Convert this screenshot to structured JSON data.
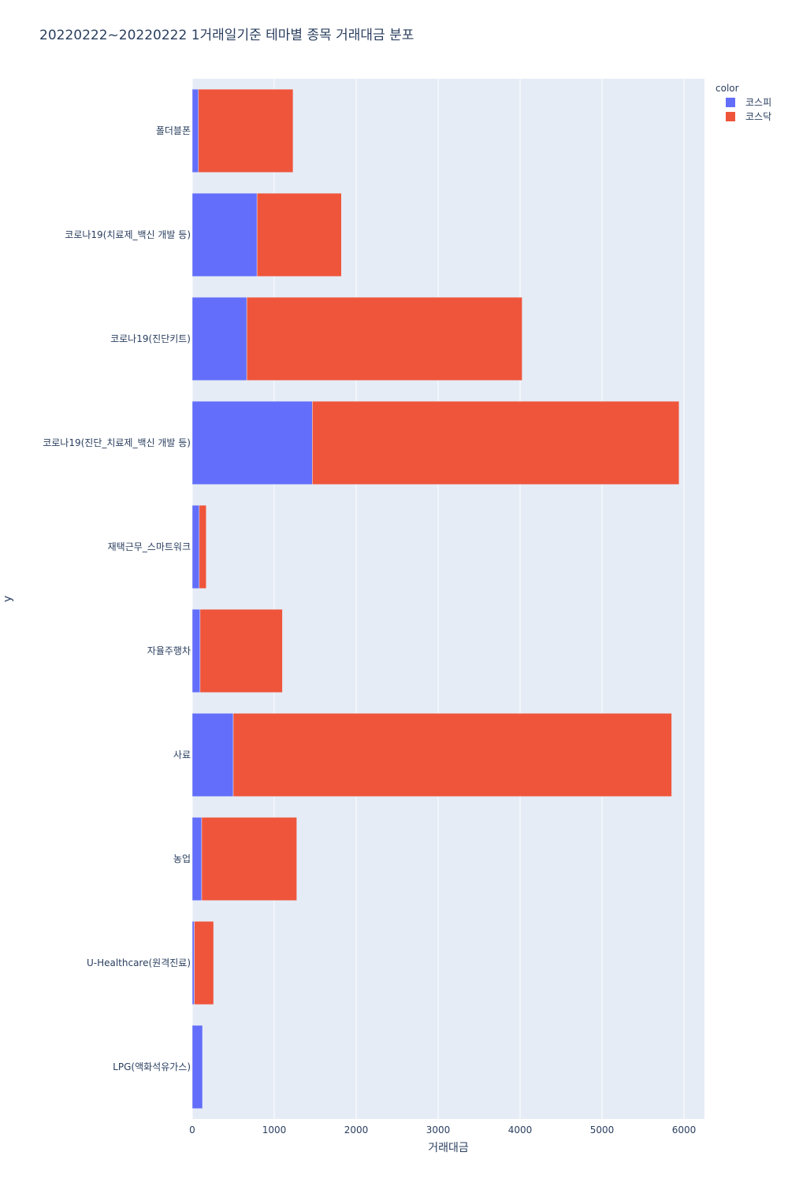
{
  "chart_data": {
    "type": "bar",
    "orientation": "horizontal",
    "barmode": "stack",
    "title": "20220222~20220222 1거래일기준 테마별 종목 거래대금 분포",
    "xlabel": "거래대금",
    "ylabel": "y",
    "xlim": [
      0,
      6250
    ],
    "xticks": [
      "0",
      "1000",
      "2000",
      "3000",
      "4000",
      "5000",
      "6000"
    ],
    "xtick_values": [
      0,
      1000,
      2000,
      3000,
      4000,
      5000,
      6000
    ],
    "grid": true,
    "legend_title": "color",
    "legend_position": "top-right",
    "categories": [
      "폴더블폰",
      "코로나19(치료제_백신 개발 등)",
      "코로나19(진단키트)",
      "코로나19(진단_치료제_백신 개발 등)",
      "재택근무_스마트워크",
      "자율주행차",
      "사료",
      "농업",
      "U-Healthcare(원격진료)",
      "LPG(액화석유가스)"
    ],
    "series": [
      {
        "name": "코스피",
        "color": "#636efa",
        "values": [
          75,
          790,
          665,
          1465,
          85,
          95,
          500,
          115,
          25,
          125
        ]
      },
      {
        "name": "코스닥",
        "color": "#ef553b",
        "values": [
          1155,
          1030,
          3360,
          4475,
          85,
          1005,
          5350,
          1160,
          235,
          0
        ]
      }
    ]
  }
}
